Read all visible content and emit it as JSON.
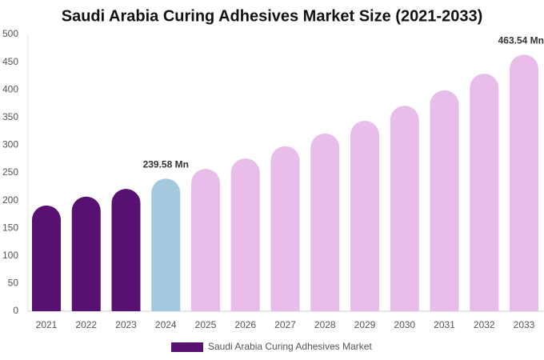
{
  "chart_data": {
    "type": "bar",
    "title": "Saudi Arabia Curing Adhesives Market Size (2021-2033)",
    "categories": [
      "2021",
      "2022",
      "2023",
      "2024",
      "2025",
      "2026",
      "2027",
      "2028",
      "2029",
      "2030",
      "2031",
      "2032",
      "2033"
    ],
    "series": [
      {
        "name": "Saudi Arabia Curing Adhesives Market",
        "color": "#581072",
        "values": [
          191,
          207,
          221,
          239.58,
          257,
          276,
          298,
          321,
          344,
          371,
          399,
          429,
          463.54
        ],
        "value_labels": [
          null,
          null,
          null,
          "239.58 Mn",
          null,
          null,
          null,
          null,
          null,
          null,
          null,
          null,
          "463.54 Mn"
        ]
      }
    ],
    "colors": [
      "#581072",
      "#581072",
      "#581072",
      "#a3c9de",
      "#e8bde9",
      "#e8bde9",
      "#e8bde9",
      "#e8bde9",
      "#e8bde9",
      "#e8bde9",
      "#e8bde9",
      "#e8bde9",
      "#e8bde9"
    ],
    "ylim": [
      0,
      500
    ],
    "yticks": [
      0,
      50,
      100,
      150,
      200,
      250,
      300,
      350,
      400,
      450,
      500
    ],
    "grid": false
  }
}
